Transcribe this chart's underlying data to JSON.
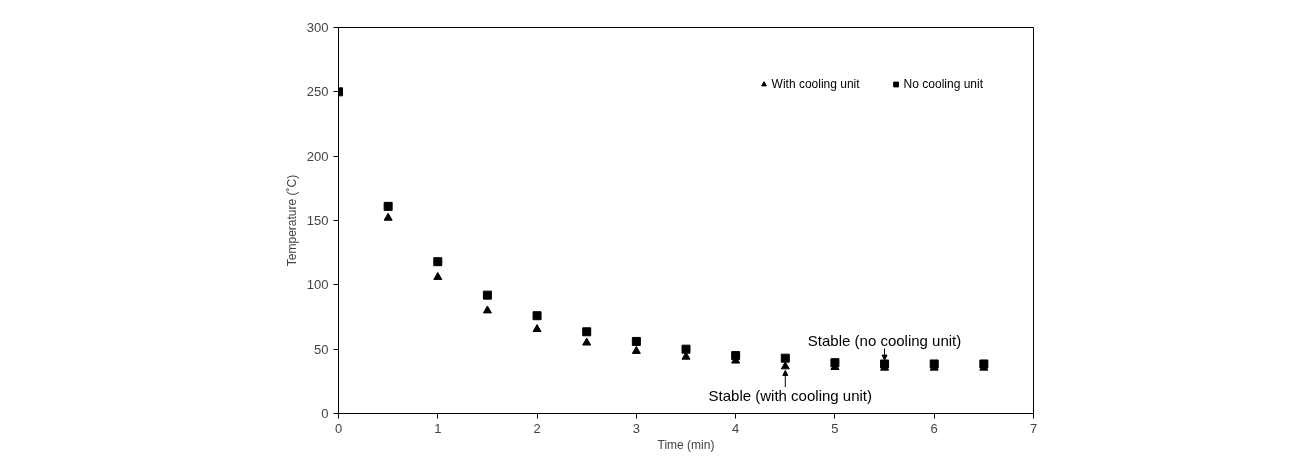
{
  "chart_data": {
    "type": "scatter",
    "xlabel": "Time (min)",
    "ylabel": "Temperature (˚C)",
    "x": [
      0,
      0.5,
      1,
      1.5,
      2,
      2.5,
      3,
      3.5,
      4,
      4.5,
      5,
      5.5,
      6,
      6.5
    ],
    "series": [
      {
        "name": "With cooling unit",
        "color": "#000000",
        "marker": "triangle",
        "values": [
          null,
          152,
          106,
          80,
          65.5,
          55,
          48.5,
          44,
          41,
          36.5,
          36,
          35.5,
          35.5,
          35.5
        ]
      },
      {
        "name": "No cooling unit",
        "color": "#000000",
        "marker": "square",
        "values": [
          250,
          161,
          118,
          92,
          76,
          63.5,
          56,
          50,
          45,
          43,
          39.5,
          38.5,
          38.5,
          38.5
        ]
      }
    ],
    "xlim": [
      0,
      7
    ],
    "xticks": [
      0,
      1,
      2,
      3,
      4,
      5,
      6,
      7
    ],
    "ylim": [
      0,
      300
    ],
    "yticks": [
      0,
      50,
      100,
      150,
      200,
      250,
      300
    ],
    "grid": false,
    "legend": "top right",
    "annotations": [
      {
        "text": "Stable (no cooling unit)",
        "x": 5.5,
        "y": 38.5
      },
      {
        "text": "Stable (with cooling unit)",
        "x": 4.5,
        "y": 36.5
      }
    ]
  }
}
